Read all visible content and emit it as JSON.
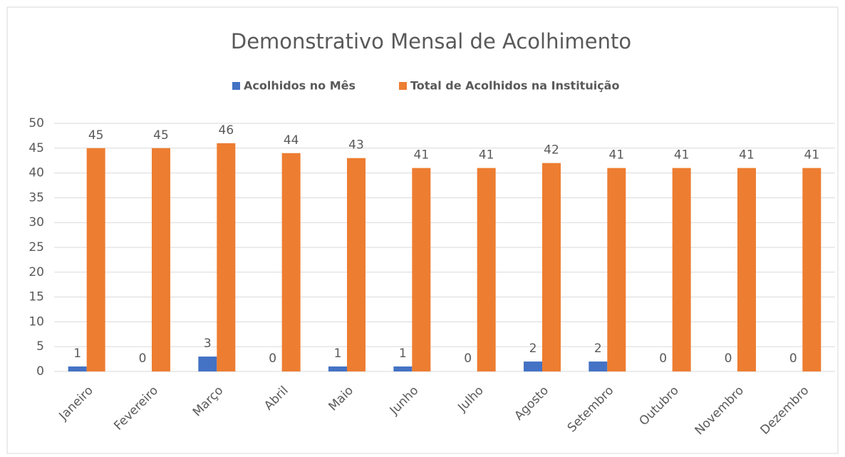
{
  "chart_data": {
    "type": "bar",
    "title": "Demonstrativo Mensal de Acolhimento",
    "categories": [
      "Janeiro",
      "Fevereiro",
      "Março",
      "Abril",
      "Maio",
      "Junho",
      "Julho",
      "Agosto",
      "Setembro",
      "Outubro",
      "Novembro",
      "Dezembro"
    ],
    "series": [
      {
        "name": "Acolhidos no Mês",
        "color": "#4472c4",
        "values": [
          1,
          0,
          3,
          0,
          1,
          1,
          0,
          2,
          2,
          0,
          0,
          0
        ]
      },
      {
        "name": "Total de Acolhidos na Instituição",
        "color": "#ed7d31",
        "values": [
          45,
          45,
          46,
          44,
          43,
          41,
          41,
          42,
          41,
          41,
          41,
          41
        ]
      }
    ],
    "ylim": [
      0,
      50
    ],
    "yticks": [
      0,
      5,
      10,
      15,
      20,
      25,
      30,
      35,
      40,
      45,
      50
    ],
    "grid": true,
    "legend": "top"
  }
}
